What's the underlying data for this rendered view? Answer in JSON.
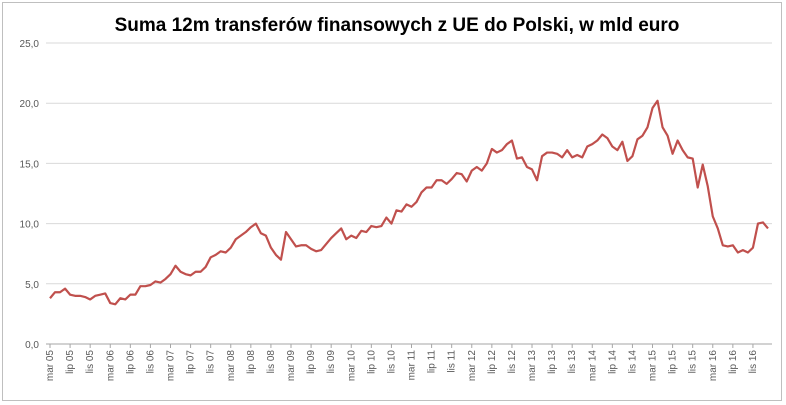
{
  "chart_data": {
    "type": "line",
    "title": "Suma 12m transferów finansowych z UE do Polski, w mld euro",
    "xlabel": "",
    "ylabel": "",
    "ylim": [
      0,
      25
    ],
    "yticks": [
      "0,0",
      "5,0",
      "10,0",
      "15,0",
      "20,0",
      "25,0"
    ],
    "grid": true,
    "legend": "none",
    "color": "#c0504d",
    "x_tick_labels": [
      "mar 05",
      "lip 05",
      "lis 05",
      "mar 06",
      "lip 06",
      "lis 06",
      "mar 07",
      "lip 07",
      "lis 07",
      "mar 08",
      "lip 08",
      "lis 08",
      "mar 09",
      "lip 09",
      "lis 09",
      "mar 10",
      "lip 10",
      "lis 10",
      "mar 11",
      "lip 11",
      "lis 11",
      "mar 12",
      "lip 12",
      "lis 12",
      "mar 13",
      "lip 13",
      "lis 13",
      "mar 14",
      "lip 14",
      "lis 14",
      "mar 15",
      "lip 15",
      "lis 15",
      "mar 16",
      "lip 16",
      "lis 16"
    ],
    "series": [
      {
        "values": [
          3.8,
          4.3,
          4.3,
          4.6,
          4.1,
          4.0,
          4.0,
          3.9,
          3.7,
          4.0,
          4.1,
          4.2,
          3.4,
          3.3,
          3.8,
          3.7,
          4.1,
          4.1,
          4.8,
          4.8,
          4.9,
          5.2,
          5.1,
          5.4,
          5.8,
          6.5,
          6.0,
          5.8,
          5.7,
          6.0,
          6.0,
          6.4,
          7.2,
          7.4,
          7.7,
          7.6,
          8.0,
          8.7,
          9.0,
          9.3,
          9.7,
          10.0,
          9.2,
          9.0,
          8.0,
          7.4,
          7.0,
          9.3,
          8.7,
          8.1,
          8.2,
          8.2,
          7.9,
          7.7,
          7.8,
          8.3,
          8.8,
          9.2,
          9.6,
          8.7,
          9.0,
          8.8,
          9.4,
          9.3,
          9.8,
          9.7,
          9.8,
          10.5,
          10.0,
          11.1,
          11.0,
          11.6,
          11.4,
          11.8,
          12.6,
          13.0,
          13.0,
          13.6,
          13.6,
          13.3,
          13.7,
          14.2,
          14.1,
          13.5,
          14.4,
          14.7,
          14.4,
          15.0,
          16.2,
          15.9,
          16.1,
          16.6,
          16.9,
          15.4,
          15.5,
          14.7,
          14.5,
          13.6,
          15.6,
          15.9,
          15.9,
          15.8,
          15.5,
          16.1,
          15.5,
          15.7,
          15.5,
          16.4,
          16.6,
          16.9,
          17.4,
          17.1,
          16.4,
          16.1,
          16.8,
          15.2,
          15.6,
          17.0,
          17.3,
          18.0,
          19.6,
          20.2,
          18.0,
          17.3,
          15.8,
          16.9,
          16.1,
          15.5,
          15.4,
          13.0,
          14.9,
          13.1,
          10.6,
          9.6,
          8.2,
          8.1,
          8.2,
          7.6,
          7.8,
          7.6,
          8.0,
          10.0,
          10.1,
          9.6
        ]
      }
    ]
  }
}
